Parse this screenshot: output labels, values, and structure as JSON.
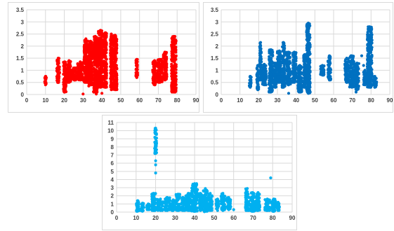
{
  "chart_data": [
    {
      "type": "scatter",
      "title": "",
      "xlabel": "",
      "ylabel": "",
      "xlim": [
        0,
        90
      ],
      "ylim": [
        0,
        3.5
      ],
      "xticks": [
        "0",
        "10",
        "20",
        "30",
        "40",
        "50",
        "60",
        "70",
        "80",
        "90"
      ],
      "yticks": [
        "0",
        "0.5",
        "1",
        "1.5",
        "2",
        "2.5",
        "3",
        "3.5"
      ],
      "grid": true,
      "legend": "none",
      "color": "#ff0000",
      "series": [
        {
          "clusters": [
            {
              "x": [
                9.5,
                10.5
              ],
              "y": [
                0.4,
                0.75
              ]
            },
            {
              "x": [
                16,
                17.5
              ],
              "y": [
                0.5,
                1.5
              ]
            },
            {
              "x": [
                19.5,
                21
              ],
              "y": [
                0.1,
                1.35
              ]
            },
            {
              "x": [
                21.5,
                23.5
              ],
              "y": [
                0.5,
                1.4
              ]
            },
            {
              "x": [
                24,
                26.5
              ],
              "y": [
                0.6,
                1.1
              ]
            },
            {
              "x": [
                27,
                30
              ],
              "y": [
                0.6,
                1.35
              ]
            },
            {
              "x": [
                30.5,
                32.5
              ],
              "y": [
                0.5,
                2.3
              ]
            },
            {
              "x": [
                33,
                35
              ],
              "y": [
                0.4,
                2.2
              ]
            },
            {
              "x": [
                35.5,
                37.5
              ],
              "y": [
                0.1,
                2.4
              ]
            },
            {
              "x": [
                38,
                40.5
              ],
              "y": [
                0.3,
                2.65
              ]
            },
            {
              "x": [
                41,
                42.5
              ],
              "y": [
                0.3,
                2.55
              ]
            },
            {
              "x": [
                44.5,
                45.5
              ],
              "y": [
                0.2,
                2.5
              ]
            },
            {
              "x": [
                46,
                48
              ],
              "y": [
                0.2,
                2.45
              ]
            },
            {
              "x": [
                58,
                59
              ],
              "y": [
                0.7,
                1.45
              ]
            },
            {
              "x": [
                67,
                69
              ],
              "y": [
                0.4,
                1.4
              ]
            },
            {
              "x": [
                69.5,
                72
              ],
              "y": [
                0.5,
                1.45
              ]
            },
            {
              "x": [
                72.5,
                74.5
              ],
              "y": [
                0.6,
                1.75
              ]
            },
            {
              "x": [
                77,
                79.5
              ],
              "y": [
                0.1,
                2.4
              ]
            }
          ],
          "points": [
            [
              30,
              0.02
            ],
            [
              37,
              0.02
            ],
            [
              40,
              0.05
            ],
            [
              36,
              0.12
            ],
            [
              79,
              0.1
            ],
            [
              33,
              0.35
            ],
            [
              48,
              0.45
            ]
          ]
        }
      ]
    },
    {
      "type": "scatter",
      "title": "",
      "xlabel": "",
      "ylabel": "",
      "xlim": [
        0,
        90
      ],
      "ylim": [
        0,
        3.5
      ],
      "xticks": [
        "0",
        "10",
        "20",
        "30",
        "40",
        "50",
        "60",
        "70",
        "80",
        "90"
      ],
      "yticks": [
        "0",
        "0.5",
        "1",
        "1.5",
        "2",
        "2.5",
        "3",
        "3.5"
      ],
      "grid": true,
      "legend": "none",
      "color": "#0070c0",
      "series": [
        {
          "clusters": [
            {
              "x": [
                15,
                16
              ],
              "y": [
                0.3,
                0.75
              ]
            },
            {
              "x": [
                19,
                20
              ],
              "y": [
                0.2,
                1.2
              ]
            },
            {
              "x": [
                20.5,
                21.5
              ],
              "y": [
                0.6,
                2.15
              ]
            },
            {
              "x": [
                22,
                24
              ],
              "y": [
                0.4,
                1.25
              ]
            },
            {
              "x": [
                25.5,
                27.5
              ],
              "y": [
                0.1,
                1.85
              ]
            },
            {
              "x": [
                28,
                29.5
              ],
              "y": [
                0.3,
                1.3
              ]
            },
            {
              "x": [
                30,
                32
              ],
              "y": [
                0.5,
                1.8
              ]
            },
            {
              "x": [
                32.5,
                34
              ],
              "y": [
                0.3,
                2.15
              ]
            },
            {
              "x": [
                35,
                37
              ],
              "y": [
                0.4,
                1.75
              ]
            },
            {
              "x": [
                38,
                40
              ],
              "y": [
                0.5,
                1.75
              ]
            },
            {
              "x": [
                41,
                43
              ],
              "y": [
                0.1,
                1.2
              ]
            },
            {
              "x": [
                44,
                45
              ],
              "y": [
                0.3,
                1.65
              ]
            },
            {
              "x": [
                45.5,
                47.5
              ],
              "y": [
                0.05,
                2.95
              ]
            },
            {
              "x": [
                53,
                55
              ],
              "y": [
                0.8,
                1.2
              ]
            },
            {
              "x": [
                57,
                58.5
              ],
              "y": [
                0.6,
                1.6
              ]
            },
            {
              "x": [
                66,
                68
              ],
              "y": [
                0.5,
                1.5
              ]
            },
            {
              "x": [
                68.5,
                71
              ],
              "y": [
                0.3,
                1.6
              ]
            },
            {
              "x": [
                71.5,
                73.5
              ],
              "y": [
                0.2,
                1.3
              ]
            },
            {
              "x": [
                76,
                77.5
              ],
              "y": [
                0.4,
                1.0
              ]
            },
            {
              "x": [
                78,
                80.5
              ],
              "y": [
                0.3,
                2.8
              ]
            },
            {
              "x": [
                81,
                83
              ],
              "y": [
                0.3,
                0.75
              ]
            }
          ],
          "points": [
            [
              24,
              0.7
            ],
            [
              41,
              0.5
            ],
            [
              36,
              0.05
            ],
            [
              72,
              0.1
            ],
            [
              75,
              1.6
            ],
            [
              76,
              1.2
            ],
            [
              47.5,
              0.1
            ]
          ]
        }
      ]
    },
    {
      "type": "scatter",
      "title": "",
      "xlabel": "",
      "ylabel": "",
      "xlim": [
        0,
        90
      ],
      "ylim": [
        0,
        11
      ],
      "xticks": [
        "0",
        "10",
        "20",
        "30",
        "40",
        "50",
        "60",
        "70",
        "80",
        "90"
      ],
      "yticks": [
        "0",
        "1",
        "2",
        "3",
        "4",
        "5",
        "6",
        "7",
        "8",
        "9",
        "10",
        "11"
      ],
      "grid": true,
      "legend": "none",
      "color": "#00b0f0",
      "series": [
        {
          "clusters": [
            {
              "x": [
                10,
                11.5
              ],
              "y": [
                0.1,
                1.4
              ]
            },
            {
              "x": [
                12.5,
                14
              ],
              "y": [
                0.1,
                1.1
              ]
            },
            {
              "x": [
                15.5,
                17
              ],
              "y": [
                0.3,
                1.0
              ]
            },
            {
              "x": [
                18,
                20
              ],
              "y": [
                0.2,
                2.3
              ]
            },
            {
              "x": [
                19.5,
                20.5
              ],
              "y": [
                7.2,
                10.3
              ]
            },
            {
              "x": [
                21,
                24
              ],
              "y": [
                0.2,
                1.6
              ]
            },
            {
              "x": [
                24.5,
                27.5
              ],
              "y": [
                0.2,
                1.8
              ]
            },
            {
              "x": [
                28,
                30
              ],
              "y": [
                0.2,
                1.5
              ]
            },
            {
              "x": [
                30.5,
                32.5
              ],
              "y": [
                0.2,
                2.2
              ]
            },
            {
              "x": [
                33,
                35
              ],
              "y": [
                0.2,
                1.8
              ]
            },
            {
              "x": [
                35.5,
                38
              ],
              "y": [
                0.2,
                2.3
              ]
            },
            {
              "x": [
                38.5,
                41.5
              ],
              "y": [
                0.1,
                3.5
              ]
            },
            {
              "x": [
                42,
                44
              ],
              "y": [
                0.2,
                2.3
              ]
            },
            {
              "x": [
                44.5,
                46.5
              ],
              "y": [
                0.1,
                2.9
              ]
            },
            {
              "x": [
                47,
                49
              ],
              "y": [
                0.2,
                2.3
              ]
            },
            {
              "x": [
                51,
                52.5
              ],
              "y": [
                0.2,
                1.6
              ]
            },
            {
              "x": [
                53.5,
                55.5
              ],
              "y": [
                0.2,
                2.3
              ]
            },
            {
              "x": [
                56.5,
                58.5
              ],
              "y": [
                0.3,
                1.8
              ]
            },
            {
              "x": [
                66,
                68
              ],
              "y": [
                0.2,
                2.9
              ]
            },
            {
              "x": [
                68.5,
                71
              ],
              "y": [
                0.1,
                2.4
              ]
            },
            {
              "x": [
                71.5,
                73.5
              ],
              "y": [
                0.2,
                2.4
              ]
            },
            {
              "x": [
                76,
                78.5
              ],
              "y": [
                0.2,
                1.6
              ]
            },
            {
              "x": [
                79.5,
                81.5
              ],
              "y": [
                0.1,
                1.6
              ]
            },
            {
              "x": [
                82,
                83.5
              ],
              "y": [
                0.2,
                1.2
              ]
            }
          ],
          "points": [
            [
              20,
              4.8
            ],
            [
              20,
              6.3
            ],
            [
              20,
              5.8
            ],
            [
              79,
              4.2
            ],
            [
              41,
              3.5
            ],
            [
              45,
              0.05
            ],
            [
              60,
              0.3
            ]
          ]
        }
      ]
    }
  ]
}
